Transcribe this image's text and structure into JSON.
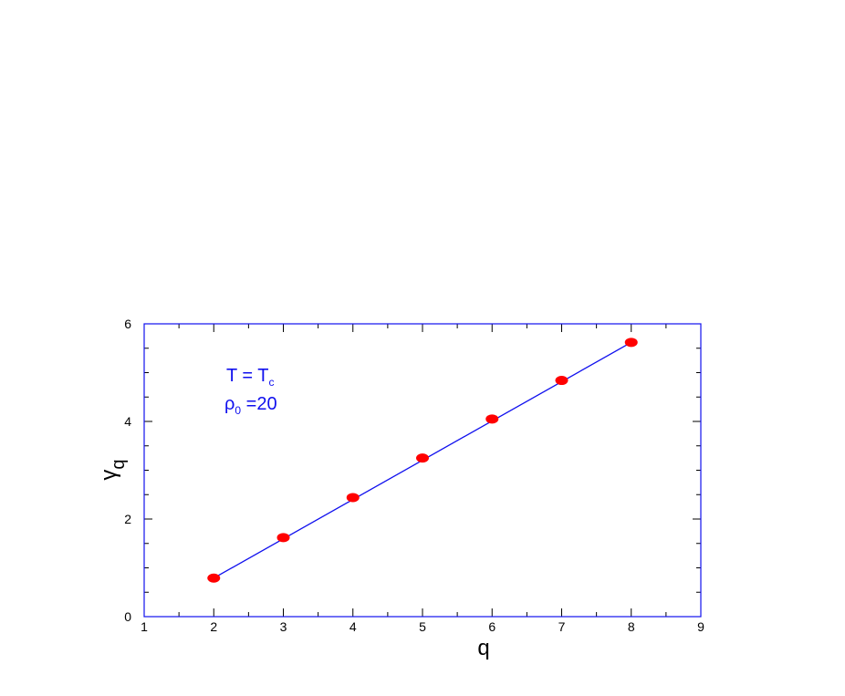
{
  "chart_data": {
    "type": "line",
    "xlabel": "q",
    "ylabel_main": "γ",
    "ylabel_sub": "q",
    "xlim": [
      1,
      9
    ],
    "ylim": [
      0,
      6
    ],
    "x_ticks": [
      1,
      2,
      3,
      4,
      5,
      6,
      7,
      8,
      9
    ],
    "y_ticks": [
      0,
      2,
      4,
      6
    ],
    "x_tick_labels": [
      "1",
      "2",
      "3",
      "4",
      "5",
      "6",
      "7",
      "8",
      "9"
    ],
    "y_tick_labels": [
      "0",
      "2",
      "4",
      "6"
    ],
    "grid": false,
    "series": [
      {
        "x": [
          2,
          3,
          4,
          5,
          6,
          7,
          8
        ],
        "y": [
          0.79,
          1.62,
          2.44,
          3.25,
          4.05,
          4.84,
          5.62
        ],
        "marker_color": "#ff0000"
      }
    ],
    "fit_line": {
      "x": [
        2,
        8
      ],
      "y": [
        0.79,
        5.62
      ],
      "color": "#1010ee"
    },
    "annotations": {
      "line1_main": "T = T",
      "line1_sub": "c",
      "line2_main": "ρ",
      "line2_sub": "0",
      "line2_rest": " =20"
    },
    "frame_color": "#1010ee"
  }
}
